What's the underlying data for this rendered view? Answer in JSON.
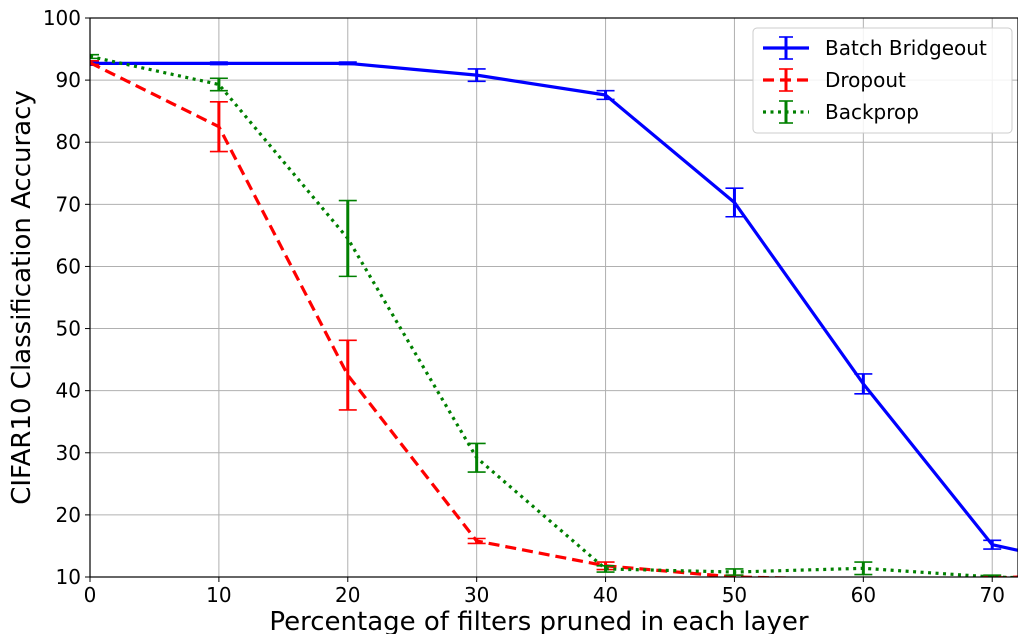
{
  "chart_data": {
    "type": "line",
    "xlabel": "Percentage of filters pruned in each layer",
    "ylabel": "CIFAR10 Classification Accuracy",
    "xlim": [
      0,
      72
    ],
    "ylim": [
      10,
      100
    ],
    "xticks": [
      0,
      10,
      20,
      30,
      40,
      50,
      60,
      70
    ],
    "yticks": [
      10,
      20,
      30,
      40,
      50,
      60,
      70,
      80,
      90,
      100
    ],
    "grid": true,
    "legend_position": "top-right",
    "series": [
      {
        "name": "Batch Bridgeout",
        "color": "#0000ff",
        "style": "solid",
        "x": [
          0,
          10,
          20,
          30,
          40,
          50,
          60,
          70,
          72
        ],
        "y": [
          92.7,
          92.7,
          92.7,
          90.8,
          87.6,
          70.3,
          41.1,
          15.2,
          14.3
        ],
        "err": [
          0.3,
          0.2,
          0.2,
          1.0,
          0.7,
          2.3,
          1.6,
          0.7,
          0
        ]
      },
      {
        "name": "Dropout",
        "color": "#ff0000",
        "style": "dashed",
        "x": [
          0,
          10,
          20,
          30,
          40,
          50,
          60,
          70,
          72
        ],
        "y": [
          92.8,
          82.5,
          42.5,
          15.8,
          11.8,
          10.0,
          9.6,
          9.8,
          10.0
        ],
        "err": [
          0.3,
          4.0,
          5.6,
          0.4,
          0.6,
          0.3,
          0.2,
          0.3,
          0
        ]
      },
      {
        "name": "Backprop",
        "color": "#008000",
        "style": "dotted",
        "x": [
          0,
          10,
          20,
          30,
          40,
          50,
          60,
          70,
          72
        ],
        "y": [
          93.8,
          89.3,
          64.5,
          29.2,
          11.3,
          10.8,
          11.4,
          10.0,
          9.9
        ],
        "err": [
          0.3,
          1.0,
          6.1,
          2.3,
          0.5,
          0.5,
          1.0,
          0.3,
          0
        ]
      }
    ]
  }
}
